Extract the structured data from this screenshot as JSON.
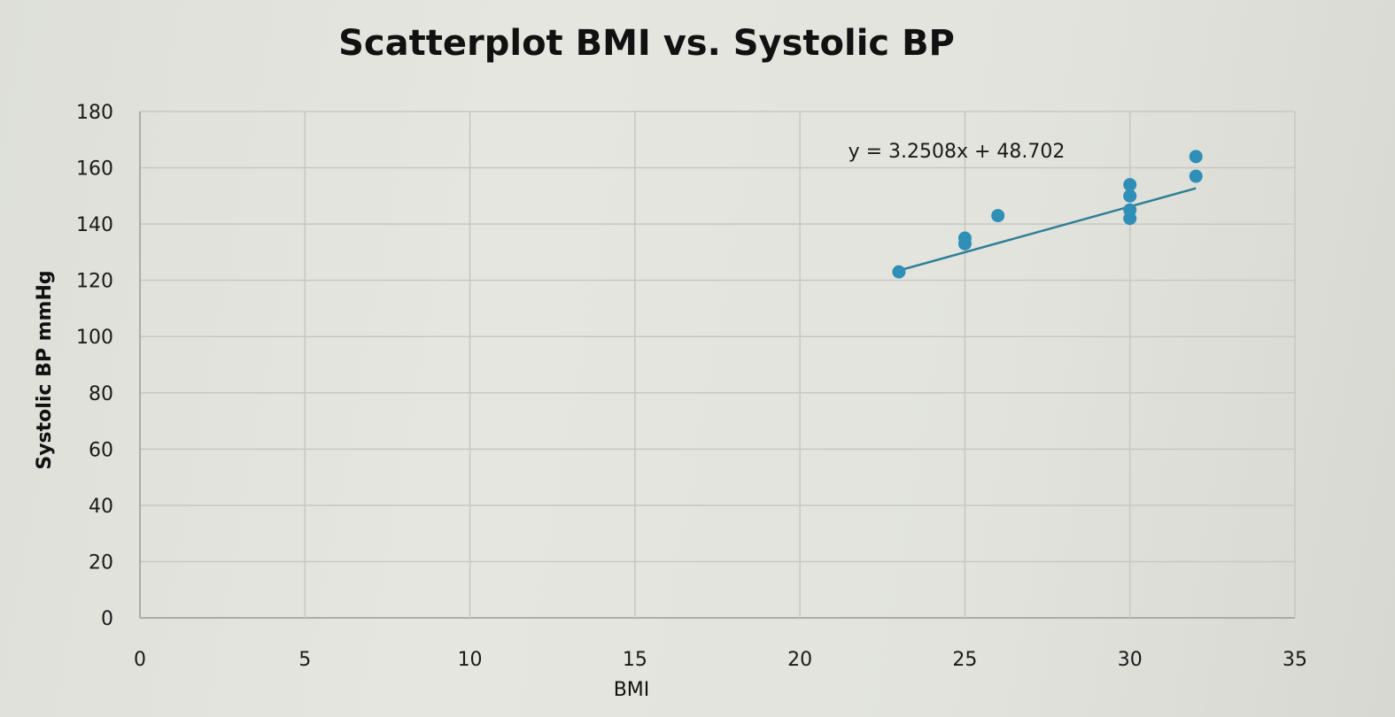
{
  "chart_data": {
    "type": "scatter",
    "title": "Scatterplot BMI vs. Systolic BP",
    "xlabel": "BMI",
    "ylabel": "Systolic BP mmHg",
    "xlim": [
      0,
      35
    ],
    "ylim": [
      0,
      180
    ],
    "xticks": [
      0,
      5,
      10,
      15,
      20,
      25,
      30,
      35
    ],
    "yticks": [
      0,
      20,
      40,
      60,
      80,
      100,
      120,
      140,
      160,
      180
    ],
    "grid": true,
    "legend": "none",
    "series": [
      {
        "color": "#2f8fb7",
        "points": [
          {
            "x": 23,
            "y": 123
          },
          {
            "x": 25,
            "y": 133
          },
          {
            "x": 25,
            "y": 135
          },
          {
            "x": 26,
            "y": 143
          },
          {
            "x": 30,
            "y": 142
          },
          {
            "x": 30,
            "y": 145
          },
          {
            "x": 30,
            "y": 150
          },
          {
            "x": 30,
            "y": 154
          },
          {
            "x": 32,
            "y": 157
          },
          {
            "x": 32,
            "y": 164
          }
        ]
      }
    ],
    "trendline": {
      "type": "linear",
      "slope": 3.2508,
      "intercept": 48.702,
      "x_range": [
        23,
        32
      ],
      "color": "#2f7f96",
      "equation_label": "y = 3.2508x + 48.702"
    }
  }
}
